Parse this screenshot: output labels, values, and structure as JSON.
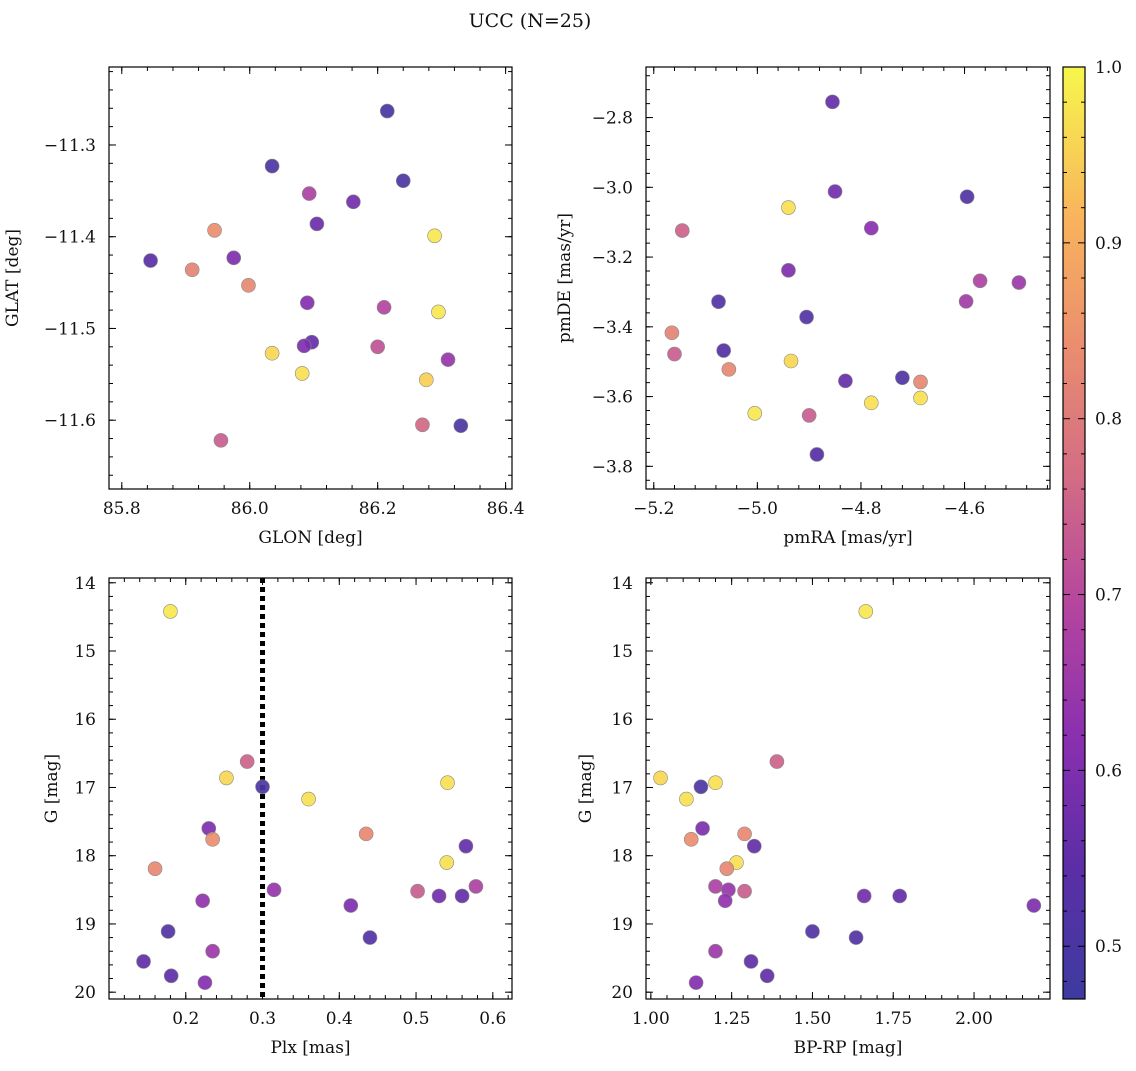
{
  "figure": {
    "title": "UCC (N=25)"
  },
  "colorbar": {
    "min": 0.47,
    "max": 1.0,
    "ticks": [
      "0.5",
      "0.6",
      "0.7",
      "0.8",
      "0.9",
      "1.0"
    ],
    "colormap": "plasma"
  },
  "chart_data": [
    {
      "type": "scatter",
      "xlabel": "GLON [deg]",
      "ylabel": "GLAT [deg]",
      "xlim": [
        85.78,
        86.41
      ],
      "ylim": [
        -11.675,
        -11.215
      ],
      "xticks": [
        85.8,
        86.0,
        86.2,
        86.4
      ],
      "xtick_labels": [
        "85.8",
        "86.0",
        "86.2",
        "86.4"
      ],
      "yticks": [
        -11.3,
        -11.4,
        -11.5,
        -11.6
      ],
      "ytick_labels": [
        "−11.3",
        "−11.4",
        "−11.5",
        "−11.6"
      ],
      "points": [
        {
          "x": 86.215,
          "y": -11.263,
          "c": 0.5
        },
        {
          "x": 86.035,
          "y": -11.323,
          "c": 0.51
        },
        {
          "x": 86.24,
          "y": -11.339,
          "c": 0.51
        },
        {
          "x": 86.093,
          "y": -11.353,
          "c": 0.68
        },
        {
          "x": 86.162,
          "y": -11.362,
          "c": 0.58
        },
        {
          "x": 86.105,
          "y": -11.386,
          "c": 0.57
        },
        {
          "x": 85.945,
          "y": -11.393,
          "c": 0.84
        },
        {
          "x": 86.289,
          "y": -11.399,
          "c": 0.98
        },
        {
          "x": 85.845,
          "y": -11.426,
          "c": 0.54
        },
        {
          "x": 85.975,
          "y": -11.423,
          "c": 0.6
        },
        {
          "x": 85.91,
          "y": -11.436,
          "c": 0.82
        },
        {
          "x": 85.998,
          "y": -11.453,
          "c": 0.83
        },
        {
          "x": 86.09,
          "y": -11.472,
          "c": 0.61
        },
        {
          "x": 86.21,
          "y": -11.477,
          "c": 0.69
        },
        {
          "x": 86.295,
          "y": -11.482,
          "c": 0.98
        },
        {
          "x": 86.097,
          "y": -11.515,
          "c": 0.56
        },
        {
          "x": 86.085,
          "y": -11.519,
          "c": 0.6
        },
        {
          "x": 86.2,
          "y": -11.52,
          "c": 0.72
        },
        {
          "x": 86.035,
          "y": -11.527,
          "c": 0.96
        },
        {
          "x": 86.31,
          "y": -11.534,
          "c": 0.64
        },
        {
          "x": 86.082,
          "y": -11.549,
          "c": 0.97
        },
        {
          "x": 86.276,
          "y": -11.556,
          "c": 0.95
        },
        {
          "x": 85.955,
          "y": -11.622,
          "c": 0.74
        },
        {
          "x": 86.27,
          "y": -11.605,
          "c": 0.76
        },
        {
          "x": 86.33,
          "y": -11.606,
          "c": 0.51
        }
      ]
    },
    {
      "type": "scatter",
      "xlabel": "pmRA [mas/yr]",
      "ylabel": "pmDE [mas/yr]",
      "xlim": [
        -5.215,
        -4.435
      ],
      "ylim": [
        -3.865,
        -2.655
      ],
      "xticks": [
        -5.2,
        -5.0,
        -4.8,
        -4.6
      ],
      "xtick_labels": [
        "−5.2",
        "−5.0",
        "−4.8",
        "−4.6"
      ],
      "yticks": [
        -2.8,
        -3.0,
        -3.2,
        -3.4,
        -3.6,
        -3.8
      ],
      "ytick_labels": [
        "−2.8",
        "−3.0",
        "−3.2",
        "−3.4",
        "−3.6",
        "−3.8"
      ],
      "points": [
        {
          "x": -4.855,
          "y": -2.755,
          "c": 0.56
        },
        {
          "x": -4.85,
          "y": -3.012,
          "c": 0.58
        },
        {
          "x": -4.595,
          "y": -3.027,
          "c": 0.52
        },
        {
          "x": -4.94,
          "y": -3.058,
          "c": 0.97
        },
        {
          "x": -4.78,
          "y": -3.117,
          "c": 0.62
        },
        {
          "x": -5.145,
          "y": -3.124,
          "c": 0.75
        },
        {
          "x": -4.94,
          "y": -3.238,
          "c": 0.6
        },
        {
          "x": -4.57,
          "y": -3.268,
          "c": 0.68
        },
        {
          "x": -4.495,
          "y": -3.273,
          "c": 0.65
        },
        {
          "x": -4.597,
          "y": -3.327,
          "c": 0.66
        },
        {
          "x": -5.075,
          "y": -3.328,
          "c": 0.52
        },
        {
          "x": -4.905,
          "y": -3.372,
          "c": 0.52
        },
        {
          "x": -5.165,
          "y": -3.417,
          "c": 0.82
        },
        {
          "x": -5.16,
          "y": -3.478,
          "c": 0.74
        },
        {
          "x": -5.065,
          "y": -3.468,
          "c": 0.53
        },
        {
          "x": -4.935,
          "y": -3.498,
          "c": 0.96
        },
        {
          "x": -5.055,
          "y": -3.522,
          "c": 0.83
        },
        {
          "x": -4.83,
          "y": -3.555,
          "c": 0.56
        },
        {
          "x": -4.72,
          "y": -3.546,
          "c": 0.51
        },
        {
          "x": -4.685,
          "y": -3.558,
          "c": 0.83
        },
        {
          "x": -4.685,
          "y": -3.604,
          "c": 0.97
        },
        {
          "x": -4.78,
          "y": -3.618,
          "c": 0.97
        },
        {
          "x": -5.005,
          "y": -3.648,
          "c": 0.98
        },
        {
          "x": -4.9,
          "y": -3.654,
          "c": 0.74
        },
        {
          "x": -4.885,
          "y": -3.766,
          "c": 0.53
        }
      ]
    },
    {
      "type": "scatter",
      "xlabel": "Plx [mas]",
      "ylabel": "G [mag]",
      "xlim": [
        0.1,
        0.625
      ],
      "ylim": [
        20.1,
        13.93
      ],
      "xticks": [
        0.2,
        0.3,
        0.4,
        0.5,
        0.6
      ],
      "xtick_labels": [
        "0.2",
        "0.3",
        "0.4",
        "0.5",
        "0.6"
      ],
      "yticks": [
        14,
        15,
        16,
        17,
        18,
        19,
        20
      ],
      "ytick_labels": [
        "14",
        "15",
        "16",
        "17",
        "18",
        "19",
        "20"
      ],
      "vline": {
        "x": 0.3,
        "style": "dotted",
        "color": "#000000"
      },
      "points": [
        {
          "x": 0.18,
          "y": 14.42,
          "c": 0.98
        },
        {
          "x": 0.28,
          "y": 16.62,
          "c": 0.75
        },
        {
          "x": 0.253,
          "y": 16.86,
          "c": 0.96
        },
        {
          "x": 0.541,
          "y": 16.93,
          "c": 0.97
        },
        {
          "x": 0.3,
          "y": 16.99,
          "c": 0.51
        },
        {
          "x": 0.36,
          "y": 17.17,
          "c": 0.97
        },
        {
          "x": 0.23,
          "y": 17.6,
          "c": 0.6
        },
        {
          "x": 0.435,
          "y": 17.68,
          "c": 0.83
        },
        {
          "x": 0.235,
          "y": 17.76,
          "c": 0.84
        },
        {
          "x": 0.565,
          "y": 17.86,
          "c": 0.56
        },
        {
          "x": 0.54,
          "y": 18.1,
          "c": 0.97
        },
        {
          "x": 0.16,
          "y": 18.19,
          "c": 0.83
        },
        {
          "x": 0.578,
          "y": 18.45,
          "c": 0.68
        },
        {
          "x": 0.315,
          "y": 18.5,
          "c": 0.64
        },
        {
          "x": 0.502,
          "y": 18.52,
          "c": 0.74
        },
        {
          "x": 0.53,
          "y": 18.59,
          "c": 0.58
        },
        {
          "x": 0.56,
          "y": 18.59,
          "c": 0.56
        },
        {
          "x": 0.222,
          "y": 18.66,
          "c": 0.63
        },
        {
          "x": 0.415,
          "y": 18.73,
          "c": 0.6
        },
        {
          "x": 0.177,
          "y": 19.11,
          "c": 0.52
        },
        {
          "x": 0.44,
          "y": 19.2,
          "c": 0.52
        },
        {
          "x": 0.235,
          "y": 19.4,
          "c": 0.65
        },
        {
          "x": 0.145,
          "y": 19.55,
          "c": 0.55
        },
        {
          "x": 0.181,
          "y": 19.76,
          "c": 0.55
        },
        {
          "x": 0.225,
          "y": 19.86,
          "c": 0.61
        }
      ]
    },
    {
      "type": "scatter",
      "xlabel": "BP-RP [mag]",
      "ylabel": "G [mag]",
      "xlim": [
        0.985,
        2.235
      ],
      "ylim": [
        20.1,
        13.93
      ],
      "xticks": [
        1.0,
        1.25,
        1.5,
        1.75,
        2.0
      ],
      "xtick_labels": [
        "1.00",
        "1.25",
        "1.50",
        "1.75",
        "2.00"
      ],
      "yticks": [
        14,
        15,
        16,
        17,
        18,
        19,
        20
      ],
      "ytick_labels": [
        "14",
        "15",
        "16",
        "17",
        "18",
        "19",
        "20"
      ],
      "points": [
        {
          "x": 1.665,
          "y": 14.42,
          "c": 0.98
        },
        {
          "x": 1.39,
          "y": 16.62,
          "c": 0.75
        },
        {
          "x": 1.03,
          "y": 16.86,
          "c": 0.96
        },
        {
          "x": 1.2,
          "y": 16.93,
          "c": 0.97
        },
        {
          "x": 1.155,
          "y": 16.99,
          "c": 0.51
        },
        {
          "x": 1.11,
          "y": 17.17,
          "c": 0.97
        },
        {
          "x": 1.16,
          "y": 17.6,
          "c": 0.6
        },
        {
          "x": 1.29,
          "y": 17.68,
          "c": 0.83
        },
        {
          "x": 1.125,
          "y": 17.76,
          "c": 0.84
        },
        {
          "x": 1.32,
          "y": 17.86,
          "c": 0.56
        },
        {
          "x": 1.265,
          "y": 18.1,
          "c": 0.97
        },
        {
          "x": 1.235,
          "y": 18.19,
          "c": 0.83
        },
        {
          "x": 1.2,
          "y": 18.45,
          "c": 0.68
        },
        {
          "x": 1.24,
          "y": 18.5,
          "c": 0.64
        },
        {
          "x": 1.29,
          "y": 18.52,
          "c": 0.74
        },
        {
          "x": 1.66,
          "y": 18.59,
          "c": 0.58
        },
        {
          "x": 1.77,
          "y": 18.59,
          "c": 0.56
        },
        {
          "x": 1.23,
          "y": 18.66,
          "c": 0.63
        },
        {
          "x": 2.185,
          "y": 18.73,
          "c": 0.6
        },
        {
          "x": 1.5,
          "y": 19.11,
          "c": 0.52
        },
        {
          "x": 1.635,
          "y": 19.2,
          "c": 0.52
        },
        {
          "x": 1.2,
          "y": 19.4,
          "c": 0.65
        },
        {
          "x": 1.31,
          "y": 19.55,
          "c": 0.55
        },
        {
          "x": 1.36,
          "y": 19.76,
          "c": 0.55
        },
        {
          "x": 1.14,
          "y": 19.86,
          "c": 0.61
        }
      ]
    }
  ]
}
